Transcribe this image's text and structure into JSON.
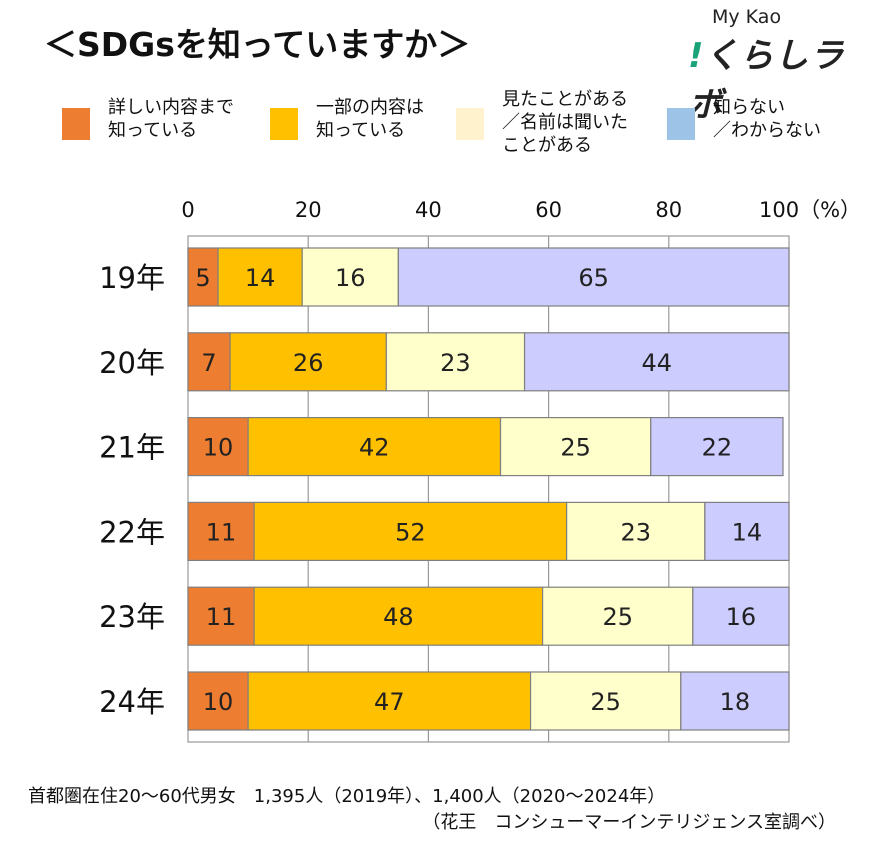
{
  "header": {
    "title": "＜SDGsを知っていますか＞"
  },
  "logo": {
    "top": "My Kao",
    "main": "くらしラボ",
    "mark": "!"
  },
  "legend": [
    {
      "label": "詳しい内容まで\n知っている",
      "color": "#ED7D31"
    },
    {
      "label": "一部の内容は\n知っている",
      "color": "#FFC000"
    },
    {
      "label": "見たことがある\n／名前は聞いた\nことがある",
      "color": "#FFF2CC"
    },
    {
      "label": "知らない\n／わからない",
      "color": "#9DC3E6"
    }
  ],
  "chart_data": {
    "type": "bar",
    "orientation": "horizontal",
    "stacked": true,
    "categories": [
      "19年",
      "20年",
      "21年",
      "22年",
      "23年",
      "24年"
    ],
    "series": [
      {
        "name": "詳しい内容まで知っている",
        "values": [
          5,
          7,
          10,
          11,
          11,
          10
        ],
        "color": "#ED7D31"
      },
      {
        "name": "一部の内容は知っている",
        "values": [
          14,
          26,
          42,
          52,
          48,
          47
        ],
        "color": "#FFC000"
      },
      {
        "name": "見たことがある／名前は聞いたことがある",
        "values": [
          16,
          23,
          25,
          23,
          25,
          25
        ],
        "color": "#FFFFCC"
      },
      {
        "name": "知らない／わからない",
        "values": [
          65,
          44,
          22,
          14,
          16,
          18
        ],
        "color": "#CCCCFF"
      }
    ],
    "xlim": [
      0,
      100
    ],
    "xticks": [
      "0",
      "20",
      "40",
      "60",
      "80",
      "100（%）"
    ],
    "xtick_values": [
      0,
      20,
      40,
      60,
      80,
      100
    ],
    "grid": true,
    "axis_position": "top"
  },
  "footer": {
    "note": "首都圏在住20～60代男女　1,395人（2019年）、1,400人（2020～2024年）",
    "source": "（花王　コンシューマーインテリジェンス室調べ）"
  }
}
